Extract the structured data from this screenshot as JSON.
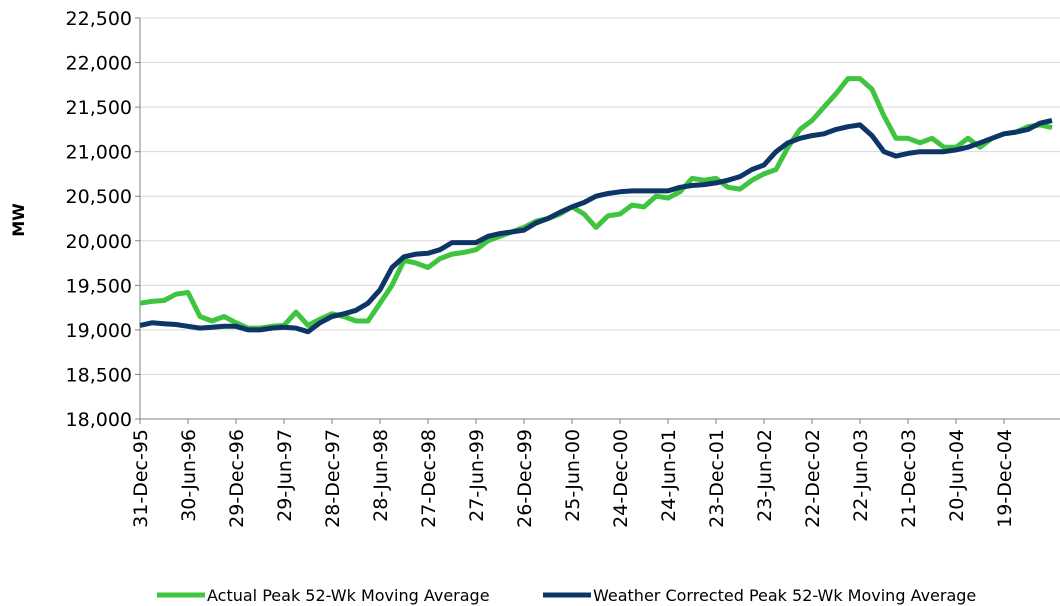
{
  "chart_data": {
    "type": "line",
    "y_label": "MW",
    "categories": [
      "31-Dec-95",
      null,
      null,
      null,
      "30-Jun-96",
      null,
      null,
      null,
      "29-Dec-96",
      null,
      null,
      null,
      "29-Jun-97",
      null,
      null,
      null,
      "28-Dec-97",
      null,
      null,
      null,
      "28-Jun-98",
      null,
      null,
      null,
      "27-Dec-98",
      null,
      null,
      null,
      "27-Jun-99",
      null,
      null,
      null,
      "26-Dec-99",
      null,
      null,
      null,
      "25-Jun-00",
      null,
      null,
      null,
      "24-Dec-00",
      null,
      null,
      null,
      "24-Jun-01",
      null,
      null,
      null,
      "23-Dec-01",
      null,
      null,
      null,
      "23-Jun-02",
      null,
      null,
      null,
      "22-Dec-02",
      null,
      null,
      null,
      "22-Jun-03",
      null,
      null,
      null,
      "21-Dec-03",
      null,
      null,
      null,
      "20-Jun-04",
      null,
      null,
      null,
      "19-Dec-04",
      null,
      null,
      null,
      null
    ],
    "series": [
      {
        "name": "Actual Peak 52-Wk Moving Average",
        "color": "#3ec43e",
        "values": [
          19300,
          19320,
          19330,
          19400,
          19420,
          19150,
          19100,
          19150,
          19080,
          19020,
          19020,
          19040,
          19050,
          19200,
          19050,
          19120,
          19180,
          19150,
          19100,
          19100,
          19300,
          19500,
          19780,
          19750,
          19700,
          19800,
          19850,
          19870,
          19900,
          20000,
          20050,
          20100,
          20150,
          20220,
          20250,
          20300,
          20380,
          20300,
          20150,
          20280,
          20300,
          20400,
          20380,
          20500,
          20480,
          20550,
          20700,
          20680,
          20700,
          20600,
          20580,
          20680,
          20750,
          20800,
          21050,
          21250,
          21350,
          21500,
          21650,
          21820,
          21820,
          21700,
          21400,
          21150,
          21150,
          21100,
          21150,
          21050,
          21050,
          21150,
          21050,
          21150,
          21200,
          21220,
          21280,
          21300,
          21270
        ]
      },
      {
        "name": "Weather Corrected Peak 52-Wk Moving Average",
        "color": "#0d3566",
        "values": [
          19050,
          19080,
          19070,
          19060,
          19040,
          19020,
          19030,
          19040,
          19040,
          19000,
          19000,
          19020,
          19030,
          19020,
          18980,
          19080,
          19150,
          19180,
          19220,
          19300,
          19450,
          19700,
          19820,
          19850,
          19860,
          19900,
          19980,
          19980,
          19980,
          20050,
          20080,
          20100,
          20120,
          20200,
          20250,
          20320,
          20380,
          20430,
          20500,
          20530,
          20550,
          20560,
          20560,
          20560,
          20560,
          20600,
          20620,
          20630,
          20650,
          20680,
          20720,
          20800,
          20850,
          21000,
          21100,
          21150,
          21180,
          21200,
          21250,
          21280,
          21300,
          21180,
          21000,
          20950,
          20980,
          21000,
          21000,
          21000,
          21020,
          21050,
          21100,
          21150,
          21200,
          21220,
          21250,
          21320,
          21350
        ]
      }
    ],
    "ylim": [
      18000,
      22500
    ],
    "yticks": [
      {
        "value": 18000,
        "label": "18,000"
      },
      {
        "value": 18500,
        "label": "18,500"
      },
      {
        "value": 19000,
        "label": "19,000"
      },
      {
        "value": 19500,
        "label": "19,500"
      },
      {
        "value": 20000,
        "label": "20,000"
      },
      {
        "value": 20500,
        "label": "20,500"
      },
      {
        "value": 21000,
        "label": "21,000"
      },
      {
        "value": 21500,
        "label": "21,500"
      },
      {
        "value": 22000,
        "label": "22,000"
      },
      {
        "value": 22500,
        "label": "22,500"
      }
    ],
    "grid": true,
    "legend": "bottom"
  }
}
